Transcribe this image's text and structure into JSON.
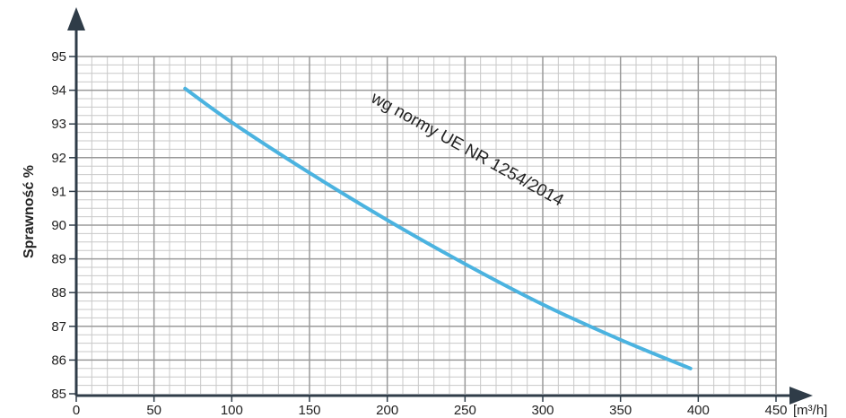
{
  "chart_data": {
    "type": "line",
    "ylabel": "Sprawność %",
    "xlabel": "",
    "x_unit": "[m³/h]",
    "xlim": [
      0,
      450
    ],
    "ylim": [
      85,
      95
    ],
    "x_ticks": [
      "0",
      "50",
      "100",
      "150",
      "200",
      "250",
      "300",
      "350",
      "400",
      "450"
    ],
    "y_ticks": [
      "85",
      "86",
      "87",
      "88",
      "89",
      "90",
      "91",
      "92",
      "93",
      "94",
      "95"
    ],
    "grid": true,
    "colors": {
      "line": "#4bb3e0",
      "grid_major": "#9a9a9a",
      "grid_minor": "#c8c8c8",
      "axis": "#2f3c48"
    },
    "series": [
      {
        "x": [
          70,
          100,
          150,
          200,
          250,
          300,
          350,
          395
        ],
        "y": [
          94.05,
          93.05,
          91.55,
          90.15,
          88.85,
          87.65,
          86.6,
          85.75
        ]
      }
    ],
    "annotations": [
      {
        "text": "wg normy UE NR 1254/2014",
        "x": 190,
        "y": 91.6
      }
    ]
  }
}
